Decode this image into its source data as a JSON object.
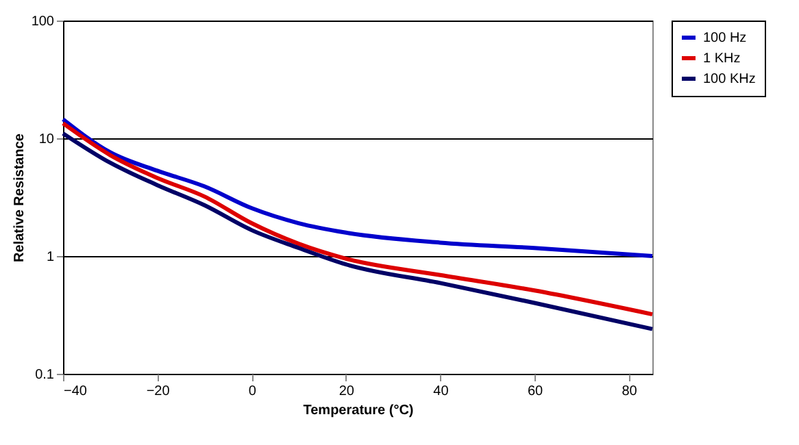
{
  "chart_data": {
    "type": "line",
    "xlabel": "Temperature (°C)",
    "ylabel": "Relative Resistance",
    "x": [
      -40,
      -30,
      -20,
      -10,
      0,
      10,
      20,
      40,
      60,
      85
    ],
    "series": [
      {
        "name": "100 Hz",
        "color": "#0000cc",
        "values": [
          14.5,
          7.6,
          5.3,
          3.9,
          2.55,
          1.9,
          1.58,
          1.3,
          1.17,
          1.0
        ]
      },
      {
        "name": "1 KHz",
        "color": "#dd0000",
        "values": [
          13.4,
          7.2,
          4.6,
          3.2,
          1.9,
          1.27,
          0.95,
          0.69,
          0.51,
          0.32
        ]
      },
      {
        "name": "100 KHz",
        "color": "#000066",
        "values": [
          11,
          6.2,
          4.0,
          2.7,
          1.66,
          1.17,
          0.85,
          0.59,
          0.4,
          0.24
        ]
      }
    ],
    "xlim": [
      -40,
      85
    ],
    "xticks": [
      -40,
      -20,
      0,
      20,
      40,
      60,
      80
    ],
    "ylim": [
      0.1,
      100
    ],
    "yticks": [
      0.1,
      1,
      10,
      100
    ],
    "log": "y",
    "grid": "y",
    "legend": "right",
    "marker": "none",
    "line_style": "solid"
  }
}
